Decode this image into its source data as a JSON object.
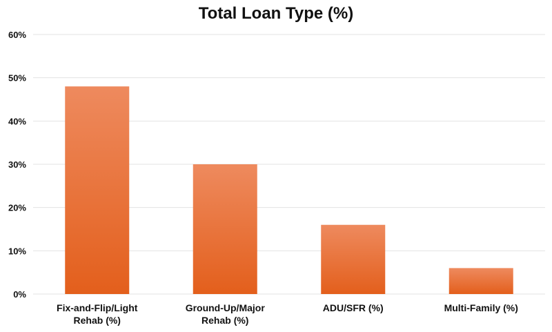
{
  "chart_data": {
    "type": "bar",
    "title": "Total Loan Type (%)",
    "categories": [
      [
        "Fix-and-Flip/Light",
        "Rehab (%)"
      ],
      [
        "Ground-Up/Major",
        "Rehab (%)"
      ],
      [
        "ADU/SFR (%)"
      ],
      [
        "Multi-Family (%)"
      ]
    ],
    "values": [
      48,
      30,
      16,
      6
    ],
    "xlabel": "",
    "ylabel": "",
    "ylim": [
      0,
      60
    ],
    "yticks": [
      0,
      10,
      20,
      30,
      40,
      50,
      60
    ],
    "ytick_labels": [
      "0%",
      "10%",
      "20%",
      "30%",
      "40%",
      "50%",
      "60%"
    ],
    "grid": true,
    "legend": "none",
    "colors": {
      "bar_top": "#ee8a5e",
      "bar_bottom": "#e35f1c",
      "grid": "#e3e3e3"
    }
  }
}
